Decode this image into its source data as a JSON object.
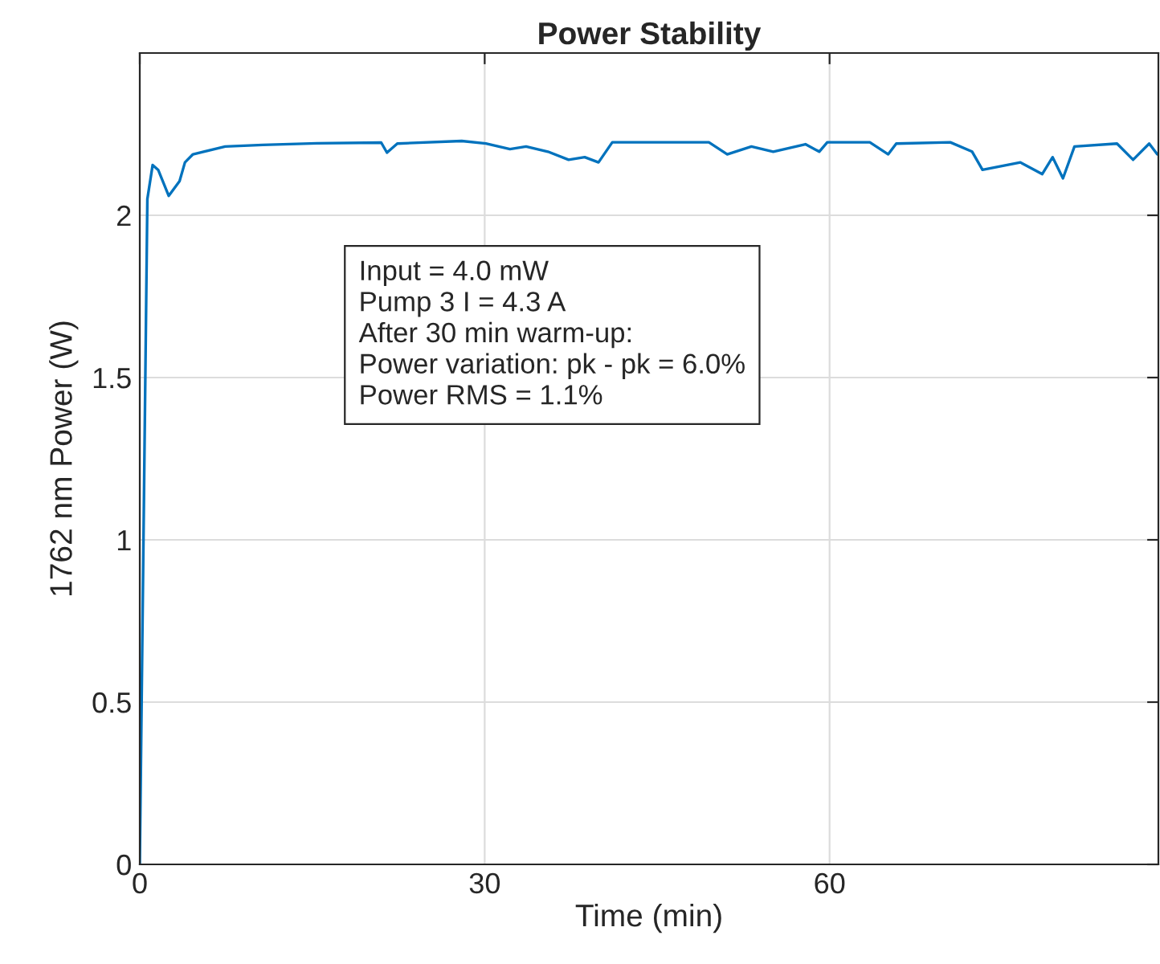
{
  "chart_data": {
    "type": "line",
    "title": "Power Stability",
    "xlabel": "Time (min)",
    "ylabel": "1762 nm Power (W)",
    "xlim": [
      0,
      88.6
    ],
    "xticks": [
      0,
      30,
      60
    ],
    "ylim": [
      0,
      2.5
    ],
    "yticks": [
      0,
      0.5,
      1,
      1.5,
      2
    ],
    "grid": true,
    "legend": false,
    "marker": "none",
    "line_style": "solid",
    "annotations": [
      "Input = 4.0 mW\nPump 3 I = 4.3 A\nAfter 30 min warm-up:\nPower variation: pk - pk = 6.0%\nPower RMS = 1.1%"
    ],
    "series": [
      {
        "color": "#0072bd",
        "x": [
          0,
          0.66,
          1.12,
          1.6,
          2.52,
          3.46,
          3.93,
          4.63,
          7.43,
          10.7,
          15.4,
          21.0,
          21.5,
          22.4,
          28.0,
          30.1,
          32.2,
          33.6,
          35.5,
          37.3,
          38.7,
          39.9,
          41.1,
          43.9,
          45.0,
          49.5,
          51.1,
          53.2,
          55.1,
          57.9,
          59.1,
          59.8,
          63.5,
          65.1,
          65.8,
          70.5,
          72.4,
          73.3,
          76.6,
          78.5,
          79.4,
          80.3,
          81.3,
          85.0,
          86.4,
          87.8,
          88.5
        ],
        "values": [
          0,
          2.05,
          2.155,
          2.14,
          2.06,
          2.105,
          2.163,
          2.188,
          2.212,
          2.217,
          2.222,
          2.224,
          2.193,
          2.221,
          2.229,
          2.221,
          2.204,
          2.212,
          2.196,
          2.171,
          2.179,
          2.163,
          2.225,
          2.225,
          2.225,
          2.225,
          2.188,
          2.212,
          2.196,
          2.219,
          2.196,
          2.225,
          2.225,
          2.188,
          2.221,
          2.225,
          2.196,
          2.14,
          2.163,
          2.127,
          2.179,
          2.114,
          2.212,
          2.221,
          2.171,
          2.221,
          2.188
        ]
      }
    ]
  }
}
